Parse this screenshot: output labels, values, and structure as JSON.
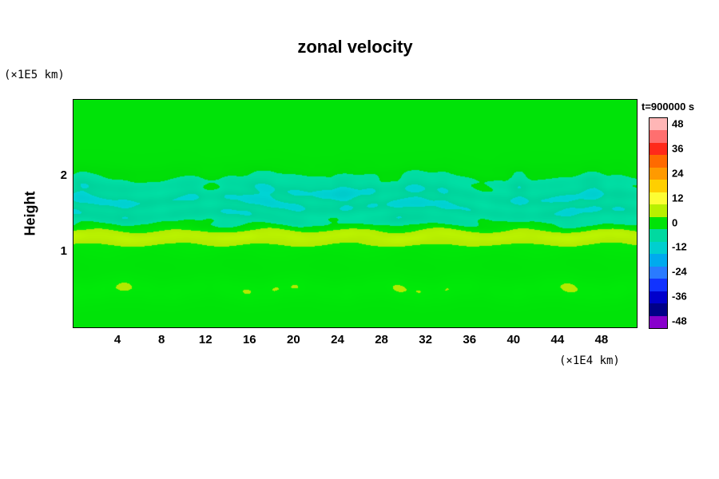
{
  "title": "zonal velocity",
  "y_axis": {
    "label": "Height",
    "unit_label": "(×1E5 km)",
    "ticks": [
      1,
      2
    ],
    "range": [
      0,
      3.0
    ]
  },
  "x_axis": {
    "unit_label": "(×1E4 km)",
    "ticks": [
      4,
      8,
      12,
      16,
      20,
      24,
      28,
      32,
      36,
      40,
      44,
      48
    ],
    "range": [
      0,
      51.2
    ]
  },
  "colorbar": {
    "title": "t=900000 s",
    "tick_labels": [
      48,
      36,
      24,
      12,
      0,
      -12,
      -24,
      -36,
      -48
    ],
    "range": [
      -51,
      51
    ],
    "segment_step": 6,
    "segment_colors_top_to_bottom": [
      "#ffb6b6",
      "#ff6f6f",
      "#ff2a1a",
      "#ff6a00",
      "#ff9a00",
      "#ffcf00",
      "#fdfd33",
      "#b8f000",
      "#00e308",
      "#00d9a0",
      "#00cfcf",
      "#00aaee",
      "#2a7bff",
      "#1133ff",
      "#0000cc",
      "#000088",
      "#8800cc"
    ]
  },
  "chart_data": {
    "type": "heatmap",
    "title": "zonal velocity",
    "time_label": "t=900000 s",
    "xlabel": "(×1E4 km)",
    "ylabel": "Height (×1E5 km)",
    "x_range": [
      0,
      51.2
    ],
    "y_range": [
      0,
      3.0
    ],
    "value_range": [
      -51,
      51
    ],
    "background_value": 0,
    "bands": [
      {
        "name": "negative-shear-band",
        "center_height": 1.6,
        "sigma_h": 0.26,
        "amplitude": -7.5,
        "wiggle": "w1"
      },
      {
        "name": "cyan-wisp-band",
        "center_height": 1.82,
        "sigma_h": 0.14,
        "amplitude": -4.5,
        "wiggle": "w2"
      },
      {
        "name": "cyan-core-patch",
        "center_height": 1.8,
        "sigma_h": 0.1,
        "amplitude": -5.0,
        "center_x": 23.5,
        "sigma_x": 2.5
      },
      {
        "name": "positive-jet-band",
        "center_height": 1.21,
        "sigma_h": 0.07,
        "amplitude": 6.5,
        "wiggle": "w1"
      },
      {
        "name": "positive-jet-broad",
        "center_height": 1.15,
        "sigma_h": 0.15,
        "amplitude": 3.0
      },
      {
        "name": "faint-lower-streaks",
        "center_height": 0.5,
        "sigma_h": 0.12,
        "amplitude": 2.6,
        "wiggle": "w1"
      }
    ],
    "notes": "field is ~0 (green) everywhere except a weak negative band (about -6 to -15) between heights 1.25 and 1.95 with cyan wisps, and a weak positive yellow-green band (about +4 to +10) near height 1.2"
  }
}
